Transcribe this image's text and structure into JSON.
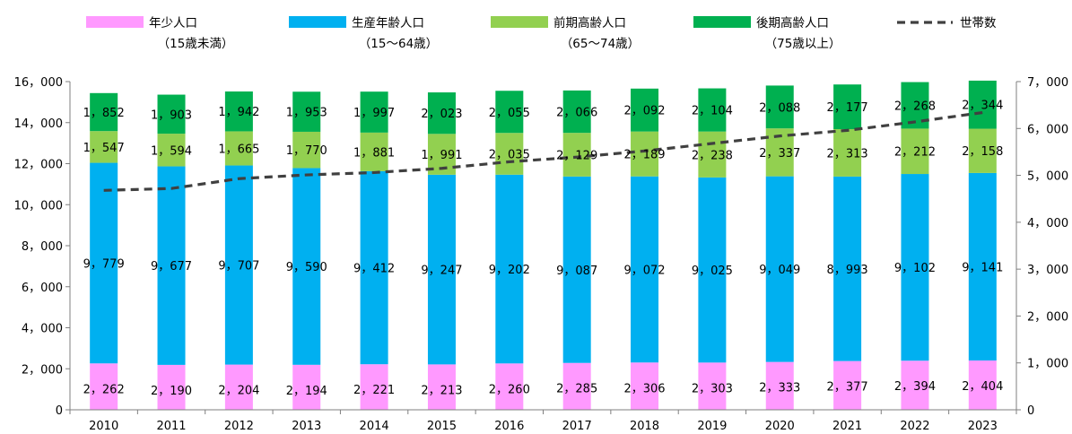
{
  "chart_data": {
    "type": "bar",
    "stacked": true,
    "categories": [
      "2010",
      "2011",
      "2012",
      "2013",
      "2014",
      "2015",
      "2016",
      "2017",
      "2018",
      "2019",
      "2020",
      "2021",
      "2022",
      "2023"
    ],
    "series": [
      {
        "name": "年少人口",
        "subname": "（15歳未満）",
        "color": "#ff99ff",
        "values": [
          2262,
          2190,
          2204,
          2194,
          2221,
          2213,
          2260,
          2285,
          2306,
          2303,
          2333,
          2377,
          2394,
          2404
        ],
        "labels": [
          "2，262",
          "2，190",
          "2，204",
          "2，194",
          "2，221",
          "2，213",
          "2，260",
          "2，285",
          "2，306",
          "2，303",
          "2，333",
          "2，377",
          "2，394",
          "2，404"
        ]
      },
      {
        "name": "生産年齢人口",
        "subname": "（15～64歳）",
        "color": "#00b0f0",
        "values": [
          9779,
          9677,
          9707,
          9590,
          9412,
          9247,
          9202,
          9087,
          9072,
          9025,
          9049,
          8993,
          9102,
          9141
        ],
        "labels": [
          "9，779",
          "9，677",
          "9，707",
          "9，590",
          "9，412",
          "9，247",
          "9，202",
          "9，087",
          "9，072",
          "9，025",
          "9，049",
          "8，993",
          "9，102",
          "9，141"
        ]
      },
      {
        "name": "前期高齢人口",
        "subname": "（65～74歳）",
        "color": "#92d050",
        "values": [
          1547,
          1594,
          1665,
          1770,
          1881,
          1991,
          2035,
          2129,
          2189,
          2238,
          2337,
          2313,
          2212,
          2158
        ],
        "labels": [
          "1，547",
          "1，594",
          "1，665",
          "1，770",
          "1，881",
          "1，991",
          "2，035",
          "2，129",
          "2，189",
          "2，238",
          "2，337",
          "2，313",
          "2，212",
          "2，158"
        ]
      },
      {
        "name": "後期高齢人口",
        "subname": "（75歳以上）",
        "color": "#00b050",
        "values": [
          1852,
          1903,
          1942,
          1953,
          1997,
          2023,
          2055,
          2066,
          2092,
          2104,
          2088,
          2177,
          2268,
          2344
        ],
        "labels": [
          "1，852",
          "1，903",
          "1，942",
          "1，953",
          "1，997",
          "2，023",
          "2，055",
          "2，066",
          "2，092",
          "2，104",
          "2，088",
          "2，177",
          "2，268",
          "2，344"
        ]
      }
    ],
    "line_series": {
      "name": "世帯数",
      "axis": "right",
      "color": "#404040",
      "style": "dashed",
      "values": [
        4680,
        4720,
        4930,
        5010,
        5060,
        5150,
        5290,
        5390,
        5520,
        5680,
        5840,
        5960,
        6140,
        6340
      ]
    },
    "y_left": {
      "min": 0,
      "max": 16000,
      "ticks": [
        0,
        2000,
        4000,
        6000,
        8000,
        10000,
        12000,
        14000,
        16000
      ],
      "tick_labels": [
        "0",
        "2，000",
        "4，000",
        "6，000",
        "8，000",
        "10，000",
        "12，000",
        "14，000",
        "16，000"
      ]
    },
    "y_right": {
      "min": 0,
      "max": 7000,
      "ticks": [
        0,
        1000,
        2000,
        3000,
        4000,
        5000,
        6000,
        7000
      ],
      "tick_labels": [
        "0",
        "1，000",
        "2，000",
        "3，000",
        "4，000",
        "5，000",
        "6，000",
        "7，000"
      ]
    },
    "legend_position": "top",
    "grid": false
  }
}
